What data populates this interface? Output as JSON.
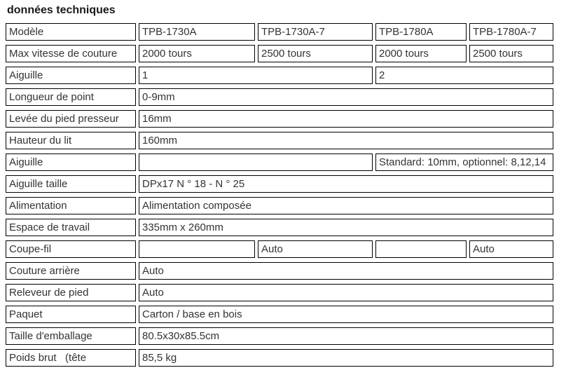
{
  "title": "données techniques",
  "colors": {
    "border": "#000000",
    "text": "#333333",
    "title_text": "#1a1a1a",
    "background": "#ffffff"
  },
  "table": {
    "rows": [
      {
        "label": "Modèle",
        "cells": [
          {
            "text": "TPB-1730A"
          },
          {
            "text": "TPB-1730A-7"
          },
          {
            "text": "TPB-1780A"
          },
          {
            "text": "TPB-1780A-7"
          }
        ]
      },
      {
        "label": "Max vitesse de couture",
        "cells": [
          {
            "text": "2000 tours"
          },
          {
            "text": "2500 tours"
          },
          {
            "text": "2000 tours"
          },
          {
            "text": "2500 tours"
          }
        ]
      },
      {
        "label": "Aiguille",
        "cells": [
          {
            "text": "1"
          },
          {
            "text": "2"
          }
        ]
      },
      {
        "label": "Longueur de point",
        "cells": [
          {
            "text": "0-9mm"
          }
        ]
      },
      {
        "label": "Levée du pied presseur",
        "cells": [
          {
            "text": "16mm"
          }
        ]
      },
      {
        "label": "Hauteur du lit",
        "cells": [
          {
            "text": "160mm"
          }
        ]
      },
      {
        "label": "Aiguille",
        "cells": [
          {
            "text": ""
          },
          {
            "text": "Standard: 10mm, optionnel: 8,12,14"
          }
        ]
      },
      {
        "label": "Aiguille taille",
        "cells": [
          {
            "text": "DPx17 N ° 18 - N ° 25"
          }
        ]
      },
      {
        "label": "Alimentation",
        "cells": [
          {
            "text": "Alimentation composée"
          }
        ]
      },
      {
        "label": "Espace de travail",
        "cells": [
          {
            "text": "335mm x 260mm"
          }
        ]
      },
      {
        "label": "Coupe-fil",
        "cells": [
          {
            "text": ""
          },
          {
            "text": "Auto"
          },
          {
            "text": ""
          },
          {
            "text": "Auto"
          }
        ]
      },
      {
        "label": "Couture arrière",
        "cells": [
          {
            "text": "Auto"
          }
        ]
      },
      {
        "label": "Releveur de pied",
        "cells": [
          {
            "text": "Auto"
          }
        ]
      },
      {
        "label": "Paquet",
        "cells": [
          {
            "text": "Carton / base en bois"
          }
        ]
      },
      {
        "label": "Taille d'emballage",
        "cells": [
          {
            "text": "80.5x30x85.5cm"
          }
        ]
      },
      {
        "label": "Poids brut   (tête",
        "cells": [
          {
            "text": "85,5 kg"
          }
        ]
      }
    ]
  }
}
